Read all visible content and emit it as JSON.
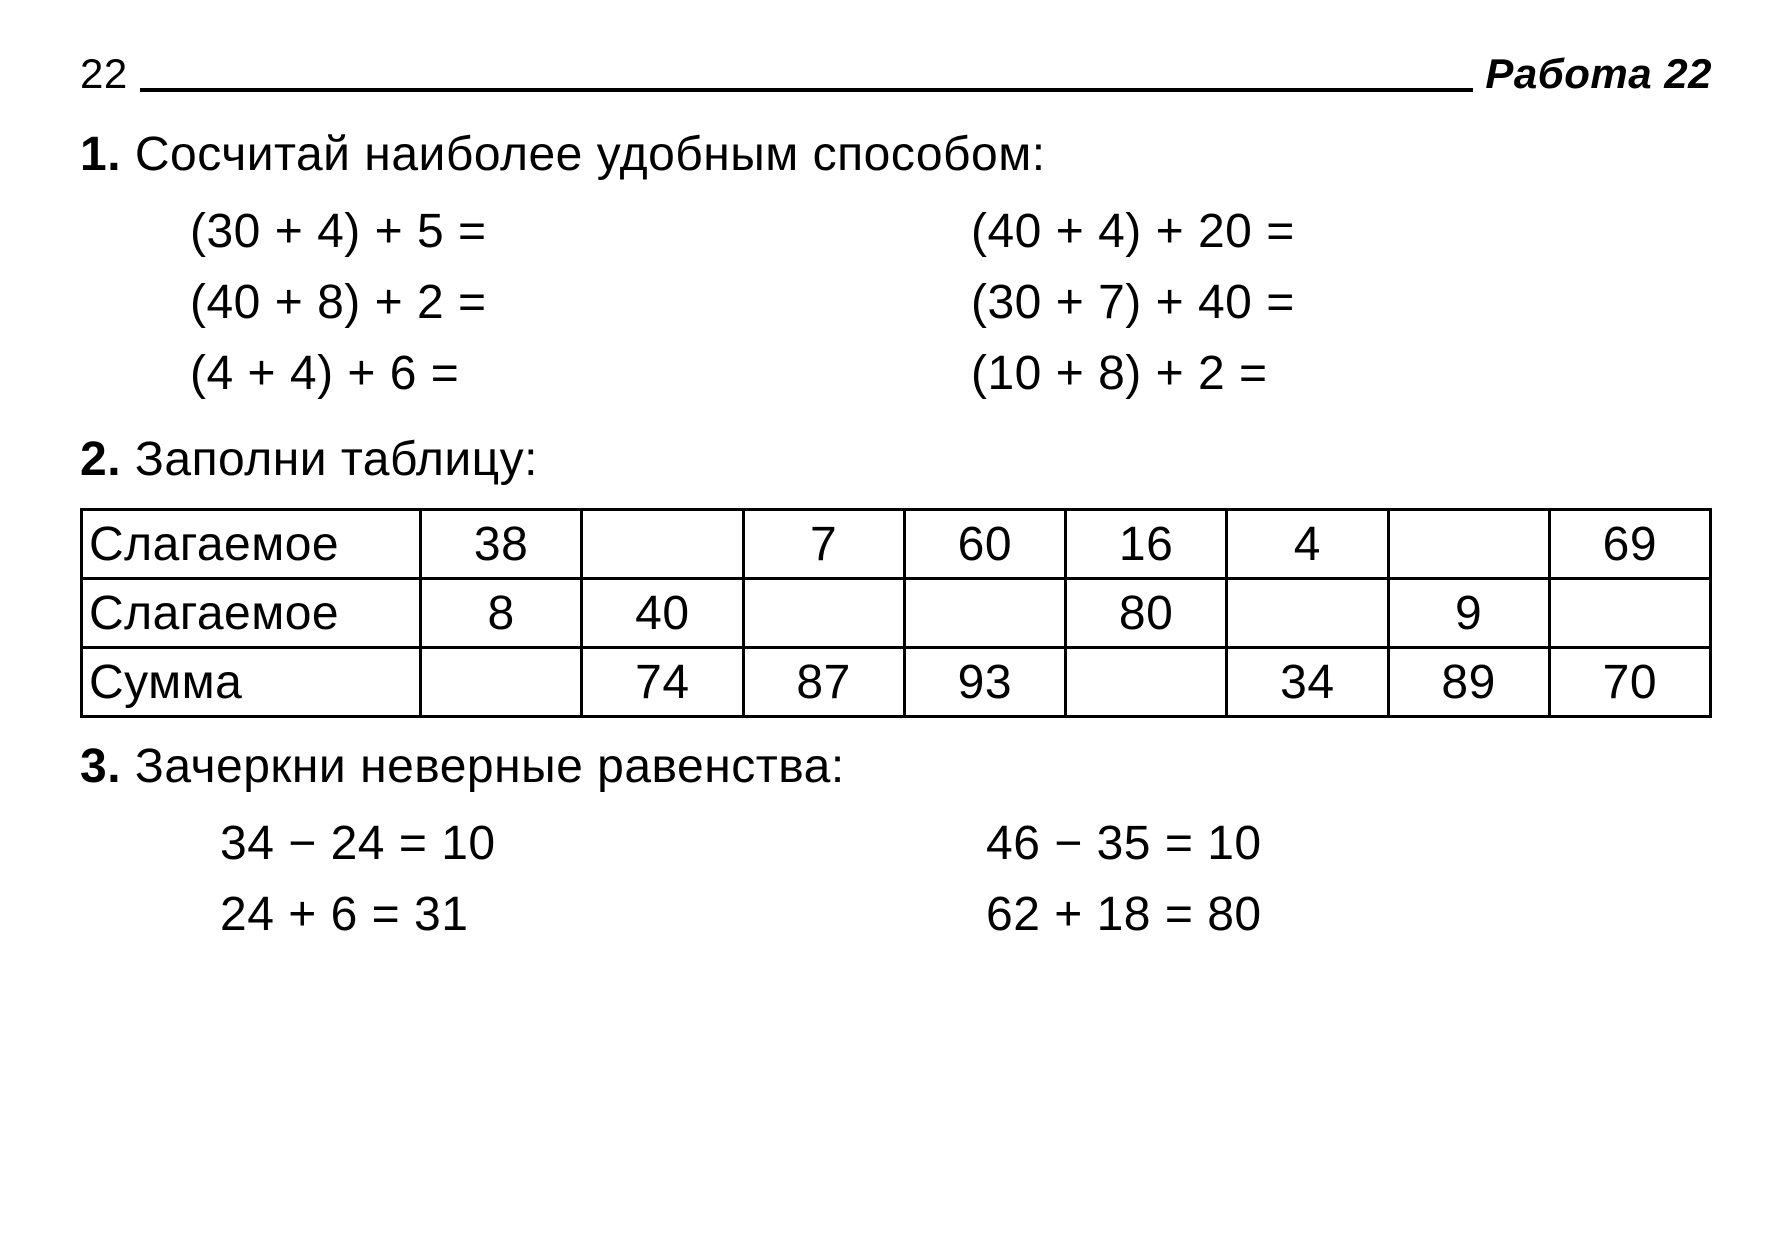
{
  "header": {
    "page_number": "22",
    "title": "Работа 22"
  },
  "task1": {
    "number": "1.",
    "prompt": "Сосчитай наиболее удобным способом:",
    "left": [
      "(30 + 4) + 5 =",
      "(40 + 8) + 2 =",
      "(4 + 4) + 6 ="
    ],
    "right": [
      "(40 + 4) + 20 =",
      "(30 + 7) + 40 =",
      "(10 + 8) + 2 ="
    ]
  },
  "task2": {
    "number": "2.",
    "prompt": "Заполни таблицу:",
    "row_labels": [
      "Слагаемое",
      "Слагаемое",
      "Сумма"
    ],
    "rows": [
      [
        "38",
        "",
        "7",
        "60",
        "16",
        "4",
        "",
        "69"
      ],
      [
        "8",
        "40",
        "",
        "",
        "80",
        "",
        "9",
        ""
      ],
      [
        "",
        "74",
        "87",
        "93",
        "",
        "34",
        "89",
        "70"
      ]
    ]
  },
  "task3": {
    "number": "3.",
    "prompt": "Зачеркни неверные равенства:",
    "left": [
      "34 − 24 = 10",
      "24 + 6 = 31"
    ],
    "right": [
      "46 − 35 = 10",
      "62 + 18 = 80"
    ]
  }
}
